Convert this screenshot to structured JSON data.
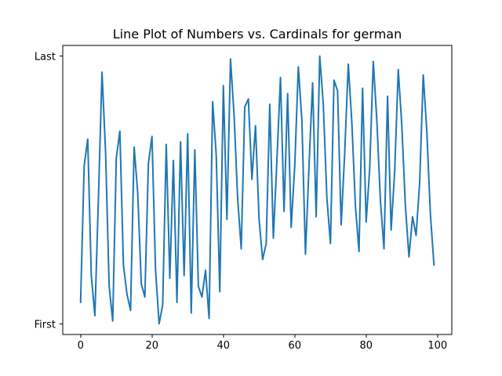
{
  "chart_data": {
    "type": "line",
    "title": "Line Plot of Numbers vs. Cardinals for german",
    "xlabel": "",
    "ylabel": "",
    "xlim": [
      -5,
      104
    ],
    "ylim": [
      -0.04,
      1.04
    ],
    "xticks": [
      0,
      20,
      40,
      60,
      80,
      100
    ],
    "yticks": [
      {
        "value": 0,
        "label": "First"
      },
      {
        "value": 1,
        "label": "Last"
      }
    ],
    "grid": false,
    "series": [
      {
        "color": "#1f77b4",
        "x": [
          0,
          1,
          2,
          3,
          4,
          5,
          6,
          7,
          8,
          9,
          10,
          11,
          12,
          13,
          14,
          15,
          16,
          17,
          18,
          19,
          20,
          21,
          22,
          23,
          24,
          25,
          26,
          27,
          28,
          29,
          30,
          31,
          32,
          33,
          34,
          35,
          36,
          37,
          38,
          39,
          40,
          41,
          42,
          43,
          44,
          45,
          46,
          47,
          48,
          49,
          50,
          51,
          52,
          53,
          54,
          55,
          56,
          57,
          58,
          59,
          60,
          61,
          62,
          63,
          64,
          65,
          66,
          67,
          68,
          69,
          70,
          71,
          72,
          73,
          74,
          75,
          76,
          77,
          78,
          79,
          80,
          81,
          82,
          83,
          84,
          85,
          86,
          87,
          88,
          89,
          90,
          91,
          92,
          93,
          94,
          95,
          96,
          97,
          98,
          99
        ],
        "y": [
          0.08,
          0.59,
          0.69,
          0.18,
          0.03,
          0.47,
          0.94,
          0.64,
          0.14,
          0.01,
          0.62,
          0.72,
          0.22,
          0.11,
          0.05,
          0.66,
          0.49,
          0.15,
          0.1,
          0.6,
          0.7,
          0.2,
          0.0,
          0.07,
          0.67,
          0.17,
          0.61,
          0.08,
          0.68,
          0.18,
          0.71,
          0.04,
          0.65,
          0.14,
          0.1,
          0.2,
          0.02,
          0.83,
          0.63,
          0.12,
          0.89,
          0.39,
          0.99,
          0.78,
          0.47,
          0.28,
          0.81,
          0.84,
          0.54,
          0.74,
          0.39,
          0.24,
          0.3,
          0.82,
          0.32,
          0.61,
          0.92,
          0.42,
          0.86,
          0.36,
          0.59,
          0.96,
          0.76,
          0.26,
          0.59,
          0.9,
          0.4,
          1.0,
          0.82,
          0.47,
          0.3,
          0.91,
          0.87,
          0.37,
          0.64,
          0.97,
          0.75,
          0.44,
          0.27,
          0.88,
          0.38,
          0.58,
          0.98,
          0.76,
          0.46,
          0.28,
          0.85,
          0.35,
          0.57,
          0.95,
          0.74,
          0.44,
          0.25,
          0.4,
          0.33,
          0.53,
          0.93,
          0.72,
          0.41,
          0.22
        ]
      }
    ]
  }
}
